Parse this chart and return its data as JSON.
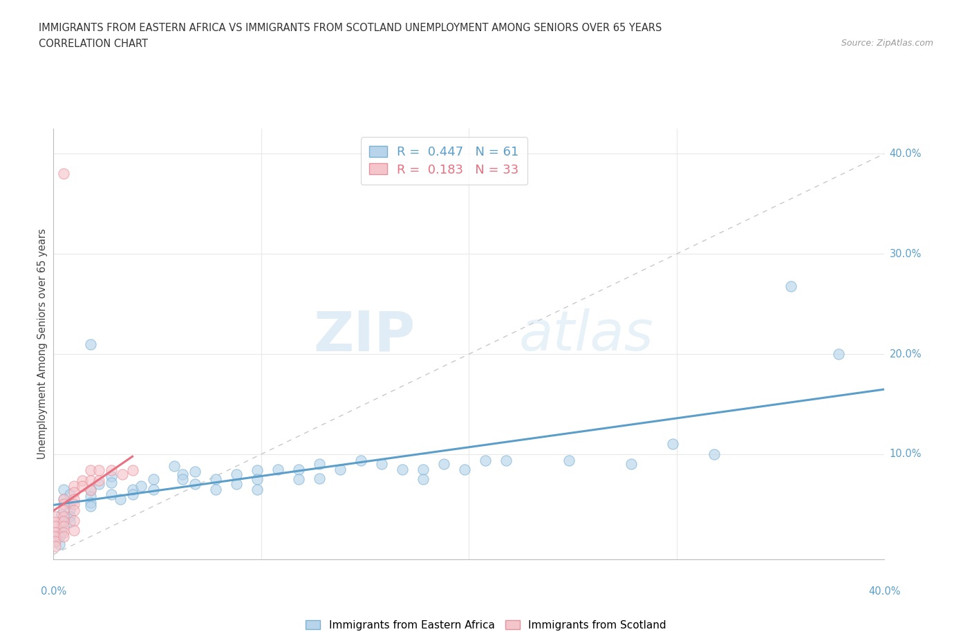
{
  "title_line1": "IMMIGRANTS FROM EASTERN AFRICA VS IMMIGRANTS FROM SCOTLAND UNEMPLOYMENT AMONG SENIORS OVER 65 YEARS",
  "title_line2": "CORRELATION CHART",
  "source_text": "Source: ZipAtlas.com",
  "ylabel": "Unemployment Among Seniors over 65 years",
  "xlim": [
    0.0,
    0.4
  ],
  "ylim": [
    -0.005,
    0.425
  ],
  "xtick_vals": [
    0.1,
    0.2,
    0.3
  ],
  "ytick_vals": [
    0.1,
    0.2,
    0.3,
    0.4
  ],
  "watermark_zip": "ZIP",
  "watermark_atlas": "atlas",
  "legend_r1_label": "R = 0.447",
  "legend_n1_label": "N = 61",
  "legend_r2_label": "R = 0.183",
  "legend_n2_label": "N = 33",
  "color_eastern_africa_face": "#b8d4ea",
  "color_eastern_africa_edge": "#7ab0d4",
  "color_scotland_face": "#f5c5cc",
  "color_scotland_edge": "#e89099",
  "color_line_eastern_africa": "#5b9ec9",
  "color_line_scotland": "#e87080",
  "color_diag_line": "#c8c8c8",
  "color_grid": "#e8e8e8",
  "color_ytick_label": "#5b9ec9",
  "color_xtick_outer": "#5b9ec9",
  "eastern_africa_x": [
    0.018,
    0.005,
    0.005,
    0.008,
    0.008,
    0.008,
    0.008,
    0.008,
    0.004,
    0.004,
    0.004,
    0.004,
    0.003,
    0.003,
    0.018,
    0.018,
    0.018,
    0.018,
    0.022,
    0.028,
    0.028,
    0.028,
    0.032,
    0.038,
    0.038,
    0.042,
    0.048,
    0.048,
    0.058,
    0.062,
    0.062,
    0.068,
    0.068,
    0.078,
    0.078,
    0.088,
    0.088,
    0.098,
    0.098,
    0.098,
    0.108,
    0.118,
    0.118,
    0.128,
    0.128,
    0.138,
    0.148,
    0.158,
    0.168,
    0.178,
    0.178,
    0.188,
    0.198,
    0.208,
    0.218,
    0.248,
    0.278,
    0.298,
    0.318,
    0.355,
    0.378
  ],
  "eastern_africa_y": [
    0.21,
    0.065,
    0.055,
    0.06,
    0.05,
    0.045,
    0.038,
    0.032,
    0.04,
    0.033,
    0.028,
    0.022,
    0.018,
    0.01,
    0.065,
    0.058,
    0.052,
    0.048,
    0.07,
    0.078,
    0.072,
    0.06,
    0.055,
    0.065,
    0.06,
    0.068,
    0.075,
    0.065,
    0.088,
    0.08,
    0.075,
    0.083,
    0.07,
    0.075,
    0.065,
    0.08,
    0.07,
    0.084,
    0.075,
    0.065,
    0.085,
    0.085,
    0.075,
    0.09,
    0.076,
    0.085,
    0.094,
    0.09,
    0.085,
    0.085,
    0.075,
    0.09,
    0.085,
    0.094,
    0.094,
    0.094,
    0.09,
    0.11,
    0.1,
    0.268,
    0.2
  ],
  "scotland_x": [
    0.001,
    0.001,
    0.001,
    0.001,
    0.001,
    0.001,
    0.001,
    0.005,
    0.005,
    0.005,
    0.005,
    0.005,
    0.005,
    0.005,
    0.005,
    0.01,
    0.01,
    0.01,
    0.01,
    0.01,
    0.01,
    0.01,
    0.014,
    0.014,
    0.018,
    0.018,
    0.018,
    0.022,
    0.022,
    0.028,
    0.033,
    0.038,
    0.005
  ],
  "scotland_y": [
    0.038,
    0.032,
    0.028,
    0.022,
    0.018,
    0.013,
    0.008,
    0.055,
    0.05,
    0.044,
    0.038,
    0.033,
    0.028,
    0.022,
    0.018,
    0.068,
    0.062,
    0.055,
    0.05,
    0.044,
    0.034,
    0.024,
    0.074,
    0.068,
    0.084,
    0.074,
    0.064,
    0.084,
    0.074,
    0.084,
    0.08,
    0.084,
    0.38
  ],
  "marker_size": 120,
  "marker_alpha": 0.65
}
